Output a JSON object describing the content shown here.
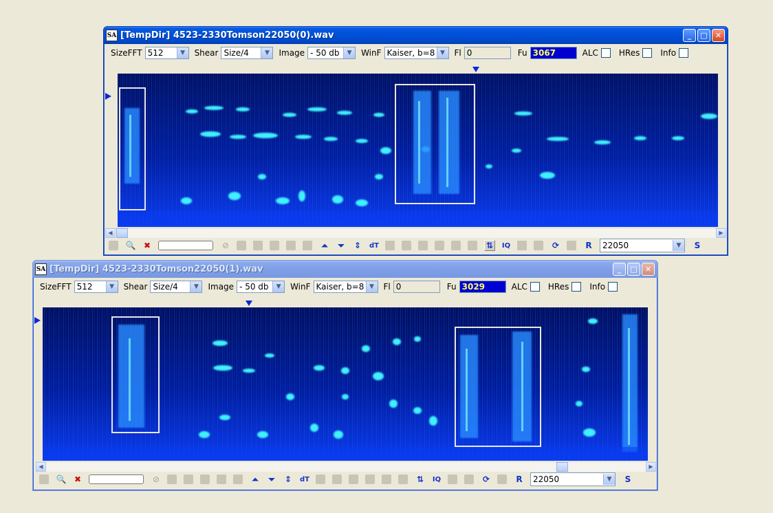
{
  "windows": [
    {
      "title": "[TempDir] 4523-2330Tomson22050(0).wav",
      "state": "active",
      "toolbar": {
        "sizefft_label": "SizeFFT",
        "sizefft_value": "512",
        "shear_label": "Shear",
        "shear_value": "Size/4",
        "image_label": "Image",
        "image_value": "- 50 db",
        "winf_label": "WinF",
        "winf_value": "Kaiser, b=8",
        "fl_label": "Fl",
        "fl_value": "0",
        "fu_label": "Fu",
        "fu_value": "3067",
        "alc_label": "ALC",
        "hres_label": "HRes",
        "info_label": "Info"
      },
      "bottombar": {
        "dt_label": "dT",
        "iq_label": "IQ",
        "r_label": "R",
        "s_label": "S",
        "sample_rate": "22050"
      }
    },
    {
      "title": "[TempDir] 4523-2330Tomson22050(1).wav",
      "state": "inactive",
      "toolbar": {
        "sizefft_label": "SizeFFT",
        "sizefft_value": "512",
        "shear_label": "Shear",
        "shear_value": "Size/4",
        "image_label": "Image",
        "image_value": "- 50 db",
        "winf_label": "WinF",
        "winf_value": "Kaiser, b=8",
        "fl_label": "Fl",
        "fl_value": "0",
        "fu_label": "Fu",
        "fu_value": "3029",
        "alc_label": "ALC",
        "hres_label": "HRes",
        "info_label": "Info"
      },
      "bottombar": {
        "dt_label": "dT",
        "iq_label": "IQ",
        "r_label": "R",
        "s_label": "S",
        "sample_rate": "22050"
      }
    }
  ],
  "colors": {
    "spectro_bg": "#000a5c",
    "spectro_mid": "#0a2fd8",
    "spectro_hot": "#4ff0ff",
    "fu_bg": "#0000d0",
    "fu_text": "#ffff60",
    "selection_box": "#e8e8e8"
  },
  "icons": [
    "app-logo-icon",
    "zoom-icon",
    "mute-icon",
    "no-entry-icon",
    "play-icon",
    "stop-icon",
    "fit-up-icon",
    "fit-down-icon",
    "fit-both-icon",
    "swap-icon",
    "rotate-icon",
    "copy-icon"
  ]
}
